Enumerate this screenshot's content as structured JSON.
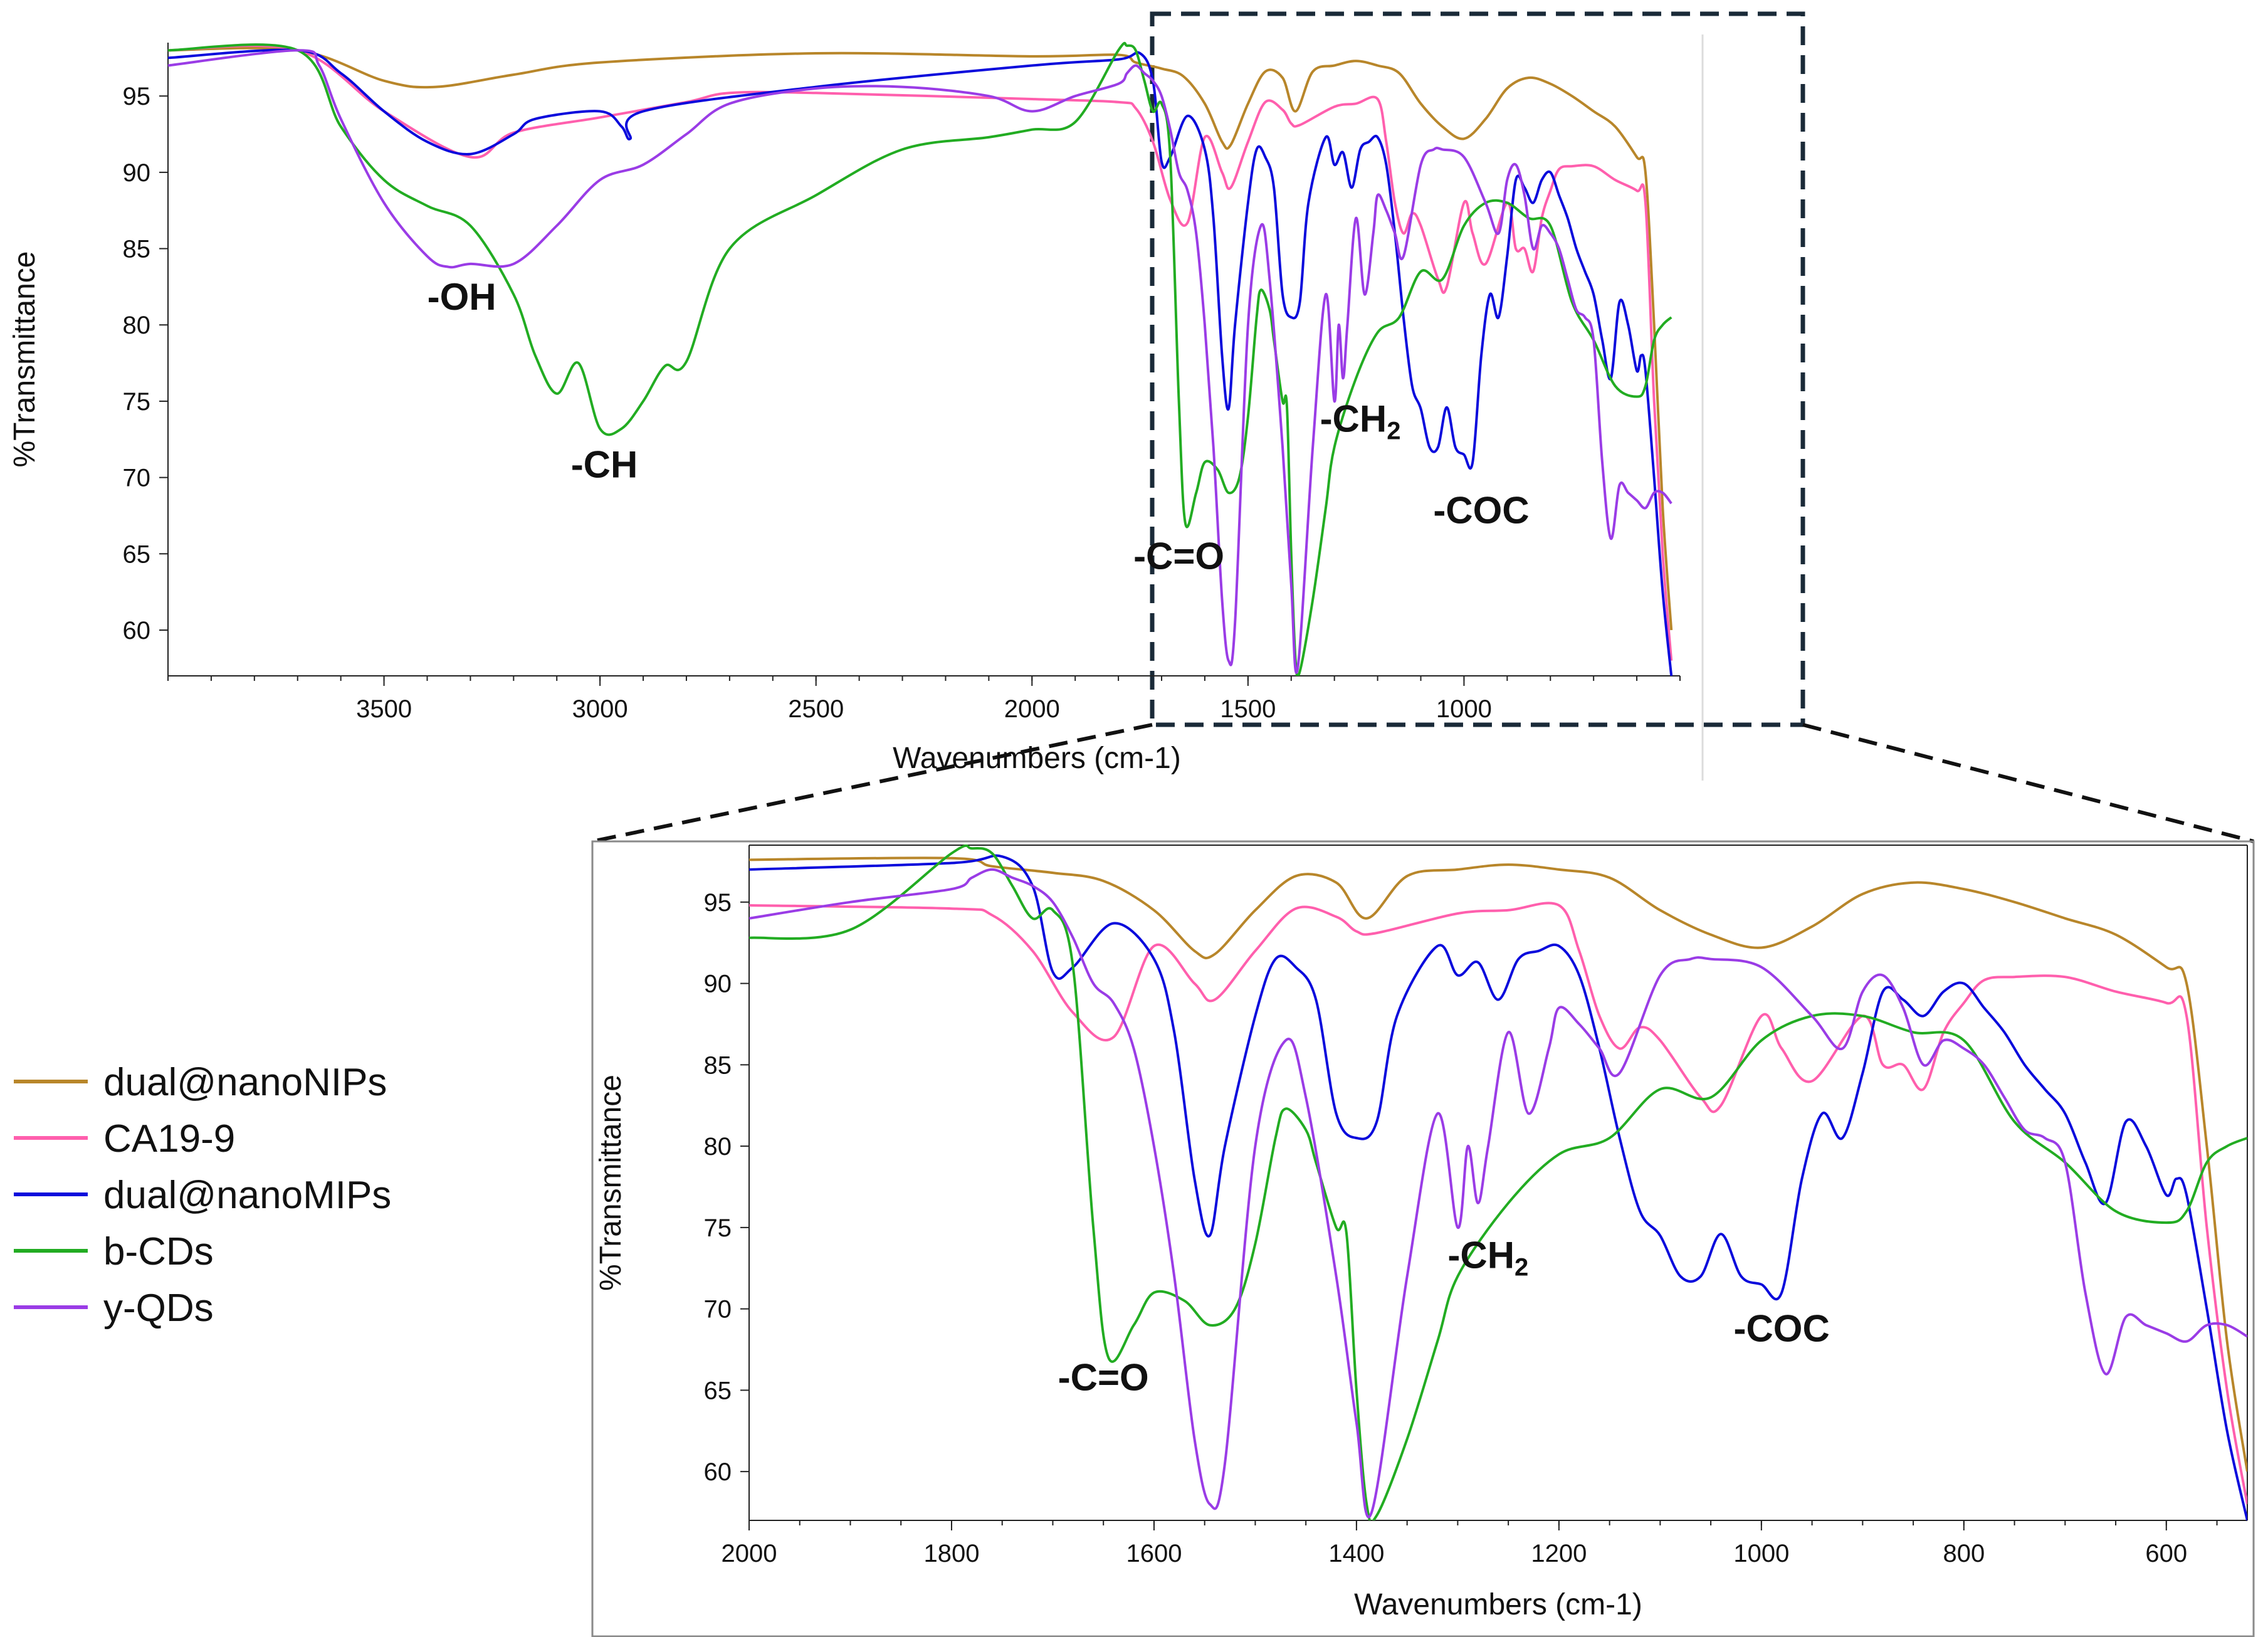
{
  "chart_data": [
    {
      "type": "line",
      "name": "full spectrum",
      "xlabel": "Wavenumbers (cm-1)",
      "ylabel": "%Transmittance",
      "xlim": [
        4000,
        500
      ],
      "ylim": [
        57,
        98.5
      ],
      "xticks": [
        3500,
        3000,
        2500,
        2000,
        1500,
        1000
      ],
      "yticks": [
        60,
        65,
        70,
        75,
        80,
        85,
        90,
        95
      ],
      "annotations": [
        {
          "text": "-OH",
          "x": 3320,
          "y": 81
        },
        {
          "text": "-CH",
          "x": 2990,
          "y": 70
        },
        {
          "text": "-C=O",
          "x": 1660,
          "y": 64
        },
        {
          "text": "-CH",
          "sub": "2",
          "x": 1240,
          "y": 73
        },
        {
          "text": "-COC",
          "x": 960,
          "y": 67
        }
      ],
      "series": [
        {
          "name": "dual@nanoNIPs",
          "color": "#b8862a",
          "x": [
            4000,
            3700,
            3500,
            3380,
            3200,
            3000,
            2500,
            2000,
            1800,
            1760,
            1700,
            1650,
            1600,
            1560,
            1540,
            1500,
            1460,
            1420,
            1390,
            1350,
            1300,
            1250,
            1200,
            1150,
            1100,
            1050,
            1000,
            950,
            900,
            850,
            800,
            750,
            700,
            650,
            600,
            580,
            560,
            540,
            520
          ],
          "y": [
            98,
            98,
            96,
            95.6,
            96.4,
            97.2,
            97.8,
            97.6,
            97.7,
            97.2,
            96.8,
            96.3,
            94.5,
            92,
            91.8,
            94.5,
            96.6,
            96.2,
            94,
            96.6,
            97,
            97.3,
            97,
            96.5,
            94.5,
            93,
            92.2,
            93.5,
            95.5,
            96.2,
            95.8,
            95,
            94,
            93,
            91,
            90,
            80,
            68,
            60
          ]
        },
        {
          "name": "CA19-9",
          "color": "#ff5fad",
          "x": [
            4000,
            3700,
            3500,
            3300,
            3200,
            3000,
            2800,
            2700,
            2500,
            2000,
            1800,
            1760,
            1720,
            1680,
            1640,
            1600,
            1560,
            1540,
            1500,
            1460,
            1420,
            1400,
            1380,
            1300,
            1250,
            1200,
            1180,
            1160,
            1140,
            1120,
            1100,
            1060,
            1040,
            1000,
            980,
            950,
            900,
            880,
            860,
            840,
            820,
            800,
            780,
            750,
            700,
            650,
            600,
            580,
            560,
            540,
            520
          ],
          "y": [
            98,
            98,
            94,
            91,
            92.6,
            93.6,
            94.6,
            95.2,
            95.2,
            94.8,
            94.6,
            94.2,
            92,
            88.2,
            86.7,
            92.3,
            90,
            89,
            92,
            94.6,
            94.1,
            93.2,
            93.1,
            94.3,
            94.5,
            94.8,
            92,
            88,
            86,
            87.3,
            86.5,
            83,
            82.5,
            88,
            86,
            84,
            88,
            85,
            85,
            83.5,
            87,
            88.8,
            90.2,
            90.4,
            90.4,
            89.5,
            88.8,
            88,
            75,
            65,
            58
          ]
        },
        {
          "name": "dual@nanoMIPs",
          "color": "#0a0adc",
          "x": [
            4000,
            3700,
            3600,
            3500,
            3400,
            3300,
            3200,
            3150,
            3000,
            2950,
            2930,
            2900,
            2500,
            2000,
            1800,
            1750,
            1720,
            1700,
            1680,
            1640,
            1600,
            1580,
            1560,
            1545,
            1530,
            1500,
            1480,
            1460,
            1440,
            1420,
            1400,
            1380,
            1360,
            1320,
            1300,
            1280,
            1260,
            1240,
            1220,
            1200,
            1180,
            1160,
            1140,
            1120,
            1100,
            1080,
            1060,
            1040,
            1020,
            1000,
            980,
            960,
            940,
            920,
            900,
            880,
            860,
            840,
            820,
            800,
            780,
            760,
            740,
            720,
            700,
            680,
            660,
            640,
            620,
            600,
            590,
            580,
            560,
            540,
            520
          ],
          "y": [
            97.5,
            98,
            96.5,
            94,
            92,
            91.2,
            92.5,
            93.5,
            94,
            93,
            92.2,
            94,
            95.6,
            97,
            97.4,
            97.8,
            96,
            90.7,
            91,
            93.7,
            91.5,
            87,
            78,
            74.5,
            80,
            88,
            91.5,
            91,
            89,
            82,
            80.5,
            81.5,
            88,
            92.3,
            90.5,
            91.3,
            89,
            91.5,
            92,
            92.3,
            90.5,
            86,
            80.5,
            76,
            74.5,
            72,
            72,
            74.6,
            72,
            71.5,
            71,
            78,
            82,
            80.5,
            84.5,
            89.5,
            89,
            88,
            89.5,
            90,
            88.5,
            87,
            85,
            83.5,
            82,
            79,
            76.5,
            81.5,
            80,
            77,
            78,
            77,
            70,
            62.5,
            57
          ]
        },
        {
          "name": "b-CDs",
          "color": "#22ac22",
          "x": [
            4000,
            3700,
            3600,
            3500,
            3400,
            3300,
            3200,
            3150,
            3100,
            3050,
            3000,
            2950,
            2900,
            2850,
            2800,
            2700,
            2500,
            2300,
            2100,
            2000,
            1900,
            1800,
            1780,
            1760,
            1740,
            1720,
            1700,
            1680,
            1660,
            1645,
            1620,
            1600,
            1570,
            1545,
            1520,
            1500,
            1480,
            1470,
            1450,
            1440,
            1420,
            1410,
            1400,
            1390,
            1380,
            1350,
            1320,
            1300,
            1250,
            1200,
            1150,
            1100,
            1050,
            1000,
            950,
            900,
            850,
            800,
            750,
            700,
            650,
            600,
            580,
            560,
            540,
            520
          ],
          "y": [
            98,
            98,
            93,
            89.5,
            87.8,
            86.5,
            82,
            78,
            75.5,
            77.5,
            73.2,
            73.2,
            75,
            77.3,
            77.6,
            85,
            88.5,
            91.5,
            92.3,
            92.8,
            93.3,
            98,
            98.3,
            98,
            96,
            94,
            94.5,
            91,
            75,
            67,
            69,
            71,
            70.5,
            69,
            70,
            74,
            80.5,
            82.3,
            81,
            79,
            75,
            74.7,
            65,
            58,
            57.3,
            62,
            68,
            72,
            76.5,
            79.5,
            80.5,
            83.5,
            83,
            86.5,
            88,
            88,
            87,
            86.5,
            81.5,
            79,
            76,
            75.3,
            76,
            79,
            80,
            80.5
          ]
        },
        {
          "name": "y-QDs",
          "color": "#9a3ce6",
          "x": [
            4000,
            3700,
            3650,
            3600,
            3500,
            3400,
            3350,
            3300,
            3200,
            3100,
            3000,
            2900,
            2800,
            2700,
            2500,
            2300,
            2100,
            2000,
            1900,
            1800,
            1780,
            1760,
            1740,
            1720,
            1700,
            1680,
            1660,
            1640,
            1620,
            1600,
            1580,
            1560,
            1545,
            1530,
            1500,
            1470,
            1450,
            1420,
            1400,
            1385,
            1350,
            1320,
            1300,
            1290,
            1280,
            1270,
            1250,
            1230,
            1210,
            1200,
            1180,
            1160,
            1140,
            1100,
            1070,
            1050,
            1000,
            950,
            920,
            900,
            880,
            860,
            840,
            820,
            800,
            780,
            760,
            740,
            720,
            700,
            680,
            660,
            640,
            620,
            600,
            580,
            560,
            540,
            520
          ],
          "y": [
            97,
            98,
            97,
            93.5,
            88,
            84.5,
            83.8,
            84,
            84,
            86.5,
            89.5,
            90.5,
            92.5,
            94.5,
            95.5,
            95.6,
            95,
            94,
            95,
            95.8,
            96.5,
            97,
            96.5,
            96,
            95,
            92.8,
            90,
            88.8,
            86,
            80,
            72,
            62,
            58,
            60.5,
            80,
            86.5,
            83,
            72,
            63,
            57.5,
            72,
            82,
            75,
            80,
            76.5,
            80,
            87,
            82,
            86,
            88.5,
            87.5,
            86,
            84.5,
            90.5,
            91.5,
            91.5,
            91,
            88,
            86,
            89.5,
            90.5,
            88.5,
            85,
            86.5,
            86,
            85,
            83,
            81,
            80.5,
            79,
            71,
            66,
            69.5,
            69,
            68.5,
            68,
            69,
            69,
            68.3
          ]
        }
      ]
    },
    {
      "type": "line",
      "name": "zoomed spectrum",
      "xlabel": "Wavenumbers (cm-1)",
      "ylabel": "%Transmittance",
      "xlim": [
        2000,
        520
      ],
      "ylim": [
        57,
        98.5
      ],
      "xticks": [
        2000,
        1800,
        1600,
        1400,
        1200,
        1000,
        800,
        600
      ],
      "yticks": [
        60,
        65,
        70,
        75,
        80,
        85,
        90,
        95
      ],
      "annotations": [
        {
          "text": "-C=O",
          "x": 1650,
          "y": 65
        },
        {
          "text": "-CH",
          "sub": "2",
          "x": 1270,
          "y": 72.5
        },
        {
          "text": "-COC",
          "x": 980,
          "y": 68
        }
      ]
    }
  ],
  "legend": {
    "entries": [
      {
        "label": "dual@nanoNIPs",
        "color": "#b8862a"
      },
      {
        "label": "CA19-9",
        "color": "#ff5fad"
      },
      {
        "label": "dual@nanoMIPs",
        "color": "#0a0adc"
      },
      {
        "label": "b-CDs",
        "color": "#22ac22"
      },
      {
        "label": "y-QDs",
        "color": "#9a3ce6"
      }
    ]
  },
  "zoom_region": {
    "x_from": 1700,
    "x_to": 520,
    "style": "dashed",
    "color": "#1a2a38"
  }
}
